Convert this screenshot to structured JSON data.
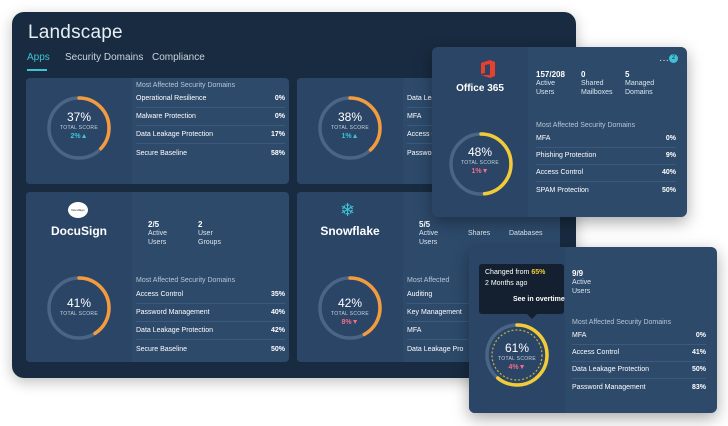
{
  "landscape": {
    "title": "Landscape",
    "tabs": [
      "Apps",
      "Security Domains",
      "Compliance"
    ],
    "active_tab": "Apps"
  },
  "common": {
    "most_affected": "Most Affected Security Domains",
    "total_score": "TOTAL SCORE"
  },
  "cards": {
    "top_left": {
      "score": "37%",
      "delta": "2%",
      "delta_dir": "up",
      "domains": [
        {
          "name": "Operational Resilience",
          "value": "0%"
        },
        {
          "name": "Malware Protection",
          "value": "0%"
        },
        {
          "name": "Data Leakage Protection",
          "value": "17%"
        },
        {
          "name": "Secure Baseline",
          "value": "58%"
        }
      ]
    },
    "top_right": {
      "score": "38%",
      "delta": "1%",
      "delta_dir": "up",
      "domains": [
        {
          "name": "Data Lea"
        },
        {
          "name": "MFA"
        },
        {
          "name": "Access C"
        },
        {
          "name": "Passwor"
        }
      ]
    },
    "docusign": {
      "brand": "DocuSign",
      "logo_text": "DocuSign",
      "stats": [
        {
          "value": "2/5",
          "label1": "Active",
          "label2": "Users"
        },
        {
          "value": "2",
          "label1": "User",
          "label2": "Groups"
        }
      ],
      "score": "41%",
      "domains": [
        {
          "name": "Access Control",
          "value": "35%"
        },
        {
          "name": "Password Management",
          "value": "40%"
        },
        {
          "name": "Data Leakage Protection",
          "value": "42%"
        },
        {
          "name": "Secure Baseline",
          "value": "50%"
        }
      ]
    },
    "snowflake": {
      "brand": "Snowflake",
      "stats": [
        {
          "value": "5/5",
          "label1": "Active",
          "label2": "Users"
        },
        {
          "label1": "Shares"
        },
        {
          "label1": "Databases"
        }
      ],
      "most_affected_partial": "Most Affected",
      "score": "42%",
      "delta": "8%",
      "delta_dir": "down",
      "domains": [
        {
          "name": "Auditing"
        },
        {
          "name": "Key Management"
        },
        {
          "name": "MFA"
        },
        {
          "name": "Data Leakage Pro"
        }
      ]
    }
  },
  "office365": {
    "brand": "Office 365",
    "badge": "2",
    "stats": [
      {
        "value": "157/208",
        "label1": "Active",
        "label2": "Users"
      },
      {
        "value": "0",
        "label1": "Shared",
        "label2": "Mailboxes"
      },
      {
        "value": "5",
        "label1": "Managed",
        "label2": "Domains"
      }
    ],
    "score": "48%",
    "delta": "1%",
    "delta_dir": "down",
    "domains": [
      {
        "name": "MFA",
        "value": "0%"
      },
      {
        "name": "Phishing Protection",
        "value": "9%"
      },
      {
        "name": "Access Control",
        "value": "40%"
      },
      {
        "name": "SPAM Protection",
        "value": "50%"
      }
    ]
  },
  "overtime": {
    "tooltip": {
      "changed_prefix": "Changed from ",
      "changed_value": "65%",
      "ago": "2 Months ago",
      "link": "See in overtime"
    },
    "stats": [
      {
        "value": "9/9",
        "label1": "Active",
        "label2": "Users"
      }
    ],
    "score": "61%",
    "delta": "4%",
    "delta_dir": "down",
    "domains": [
      {
        "name": "MFA",
        "value": "0%"
      },
      {
        "name": "Access Control",
        "value": "41%"
      },
      {
        "name": "Data Leakage Protection",
        "value": "50%"
      },
      {
        "name": "Password Management",
        "value": "83%"
      }
    ]
  },
  "colors": {
    "orange": "#f39b3e",
    "yellow": "#f2cc38",
    "teal": "#3ec2d6",
    "pink": "#f06e8a"
  }
}
